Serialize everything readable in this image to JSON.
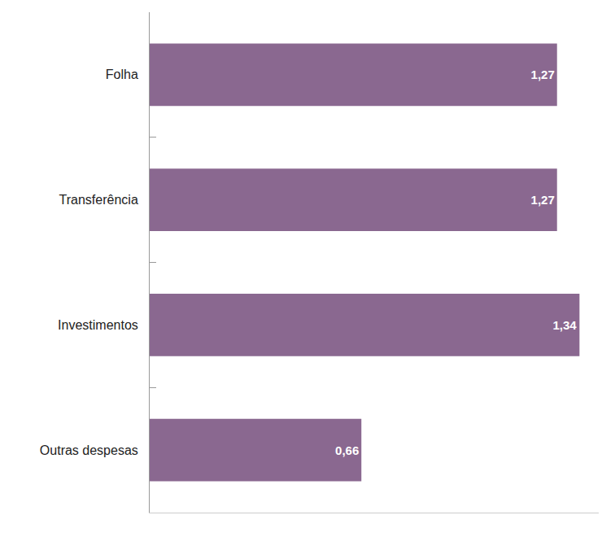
{
  "chart_data": {
    "type": "bar",
    "orientation": "horizontal",
    "categories": [
      "Folha",
      "Transferência",
      "Investimentos",
      "Outras despesas"
    ],
    "values": [
      1.27,
      1.27,
      1.34,
      0.66
    ],
    "value_labels": [
      "1,27",
      "1,27",
      "1,34",
      "0,66"
    ],
    "color": "#8a6890",
    "xlim": [
      0,
      1.4
    ],
    "data_labels": true,
    "tick_labels": "y",
    "grid": false
  }
}
